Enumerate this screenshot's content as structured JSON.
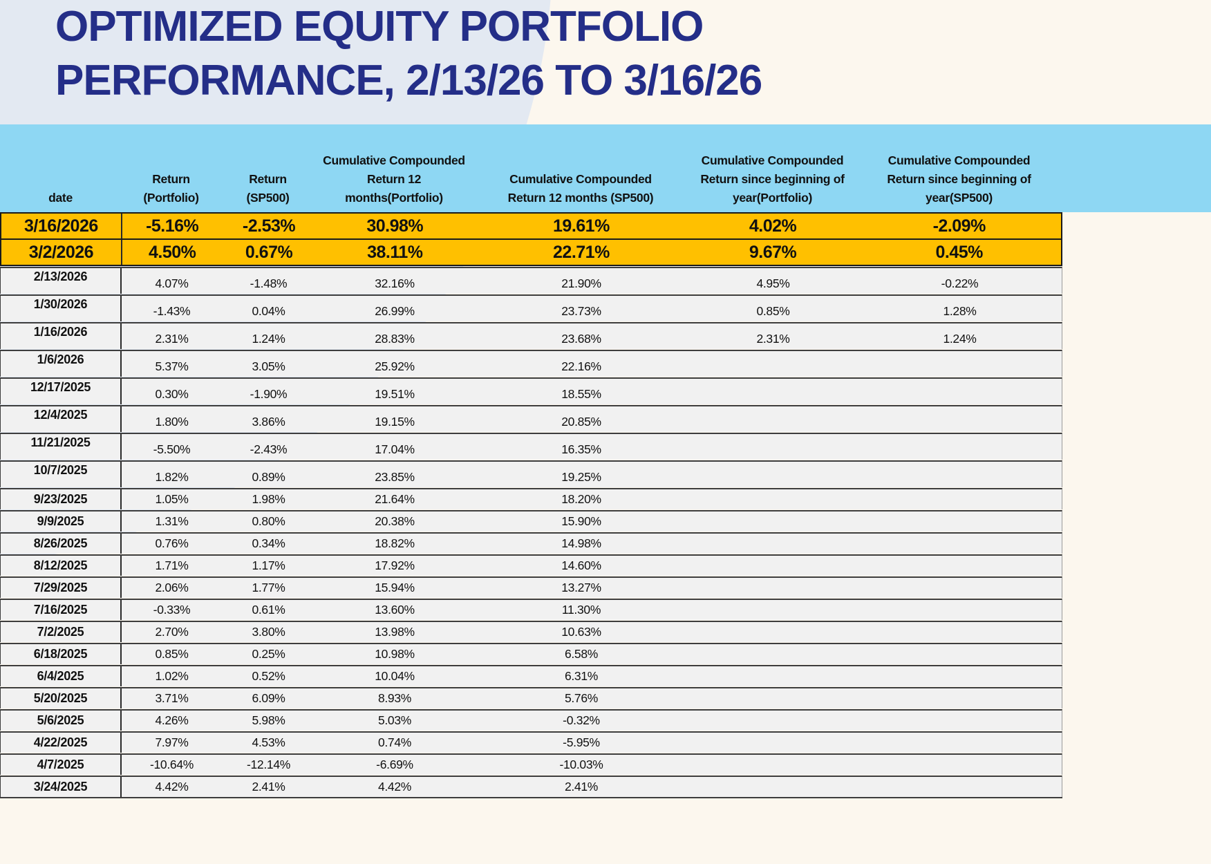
{
  "title": {
    "line1": "OPTIMIZED EQUITY PORTFOLIO",
    "line2": "PERFORMANCE, 2/13/26 TO 3/16/26"
  },
  "colors": {
    "title_text": "#242e88",
    "header_bg": "#8ed7f3",
    "highlight_row_bg": "#ffc000",
    "row_bg": "#f1f1f1",
    "bg_left_shape": "#e3e9f2",
    "bg_page": "#fcf7ee"
  },
  "table": {
    "header_lines": [
      [
        "date"
      ],
      [
        "Return",
        "(Portfolio)"
      ],
      [
        "Return",
        "(SP500)"
      ],
      [
        "Cumulative Compounded",
        "Return 12",
        "months(Portfolio)"
      ],
      [
        "Cumulative Compounded",
        "Return 12 months (SP500)"
      ],
      [
        "Cumulative Compounded",
        "Return since beginning of",
        "year(Portfolio)"
      ],
      [
        "Cumulative Compounded",
        "Return since beginning of",
        "year(SP500)"
      ]
    ],
    "row_styles": [
      "highlight",
      "highlight",
      "tall",
      "tall",
      "tall",
      "tall",
      "tall",
      "tall",
      "tall",
      "tall",
      "short",
      "short",
      "short",
      "short",
      "short",
      "short",
      "short",
      "short",
      "short",
      "short",
      "short",
      "short",
      "short",
      "short"
    ]
  },
  "chart_data": {
    "type": "table",
    "title": "Optimized Equity Portfolio Performance, 2/13/26 to 3/16/26",
    "columns": [
      "date",
      "Return (Portfolio)",
      "Return (SP500)",
      "Cumulative Compounded Return 12 months(Portfolio)",
      "Cumulative Compounded Return 12 months (SP500)",
      "Cumulative Compounded Return since beginning of year(Portfolio)",
      "Cumulative Compounded Return since beginning of year(SP500)"
    ],
    "rows": [
      [
        "3/16/2026",
        "-5.16%",
        "-2.53%",
        "30.98%",
        "19.61%",
        "4.02%",
        "-2.09%"
      ],
      [
        "3/2/2026",
        "4.50%",
        "0.67%",
        "38.11%",
        "22.71%",
        "9.67%",
        "0.45%"
      ],
      [
        "2/13/2026",
        "4.07%",
        "-1.48%",
        "32.16%",
        "21.90%",
        "4.95%",
        "-0.22%"
      ],
      [
        "1/30/2026",
        "-1.43%",
        "0.04%",
        "26.99%",
        "23.73%",
        "0.85%",
        "1.28%"
      ],
      [
        "1/16/2026",
        "2.31%",
        "1.24%",
        "28.83%",
        "23.68%",
        "2.31%",
        "1.24%"
      ],
      [
        "1/6/2026",
        "5.37%",
        "3.05%",
        "25.92%",
        "22.16%",
        "",
        ""
      ],
      [
        "12/17/2025",
        "0.30%",
        "-1.90%",
        "19.51%",
        "18.55%",
        "",
        ""
      ],
      [
        "12/4/2025",
        "1.80%",
        "3.86%",
        "19.15%",
        "20.85%",
        "",
        ""
      ],
      [
        "11/21/2025",
        "-5.50%",
        "-2.43%",
        "17.04%",
        "16.35%",
        "",
        ""
      ],
      [
        "10/7/2025",
        "1.82%",
        "0.89%",
        "23.85%",
        "19.25%",
        "",
        ""
      ],
      [
        "9/23/2025",
        "1.05%",
        "1.98%",
        "21.64%",
        "18.20%",
        "",
        ""
      ],
      [
        "9/9/2025",
        "1.31%",
        "0.80%",
        "20.38%",
        "15.90%",
        "",
        ""
      ],
      [
        "8/26/2025",
        "0.76%",
        "0.34%",
        "18.82%",
        "14.98%",
        "",
        ""
      ],
      [
        "8/12/2025",
        "1.71%",
        "1.17%",
        "17.92%",
        "14.60%",
        "",
        ""
      ],
      [
        "7/29/2025",
        "2.06%",
        "1.77%",
        "15.94%",
        "13.27%",
        "",
        ""
      ],
      [
        "7/16/2025",
        "-0.33%",
        "0.61%",
        "13.60%",
        "11.30%",
        "",
        ""
      ],
      [
        "7/2/2025",
        "2.70%",
        "3.80%",
        "13.98%",
        "10.63%",
        "",
        ""
      ],
      [
        "6/18/2025",
        "0.85%",
        "0.25%",
        "10.98%",
        "6.58%",
        "",
        ""
      ],
      [
        "6/4/2025",
        "1.02%",
        "0.52%",
        "10.04%",
        "6.31%",
        "",
        ""
      ],
      [
        "5/20/2025",
        "3.71%",
        "6.09%",
        "8.93%",
        "5.76%",
        "",
        ""
      ],
      [
        "5/6/2025",
        "4.26%",
        "5.98%",
        "5.03%",
        "-0.32%",
        "",
        ""
      ],
      [
        "4/22/2025",
        "7.97%",
        "4.53%",
        "0.74%",
        "-5.95%",
        "",
        ""
      ],
      [
        "4/7/2025",
        "-10.64%",
        "-12.14%",
        "-6.69%",
        "-10.03%",
        "",
        ""
      ],
      [
        "3/24/2025",
        "4.42%",
        "2.41%",
        "4.42%",
        "2.41%",
        "",
        ""
      ]
    ]
  }
}
